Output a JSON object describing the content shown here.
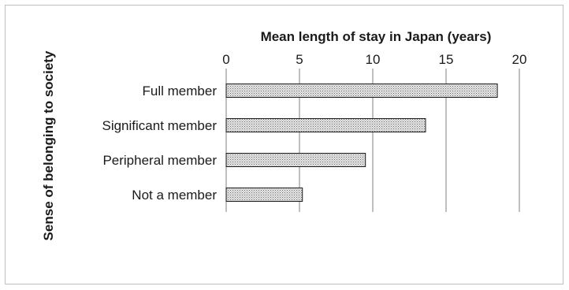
{
  "chart_data": {
    "type": "bar",
    "orientation": "horizontal",
    "title": "Mean length of stay in Japan (years)",
    "xlabel": "Mean length of stay in Japan (years)",
    "ylabel": "Sense of belonging to society",
    "categories": [
      "Full member",
      "Significant member",
      "Peripheral member",
      "Not a member"
    ],
    "values": [
      18.5,
      13.6,
      9.5,
      5.2
    ],
    "xlim": [
      0,
      20
    ],
    "x_ticks": [
      0,
      5,
      10,
      15,
      20
    ],
    "x_axis_position": "top",
    "grid": "vertical",
    "legend": "none",
    "bar_fill": "dotted grey pattern",
    "bar_color": "#bdbdbd",
    "grid_color": "#7f7f7f"
  }
}
